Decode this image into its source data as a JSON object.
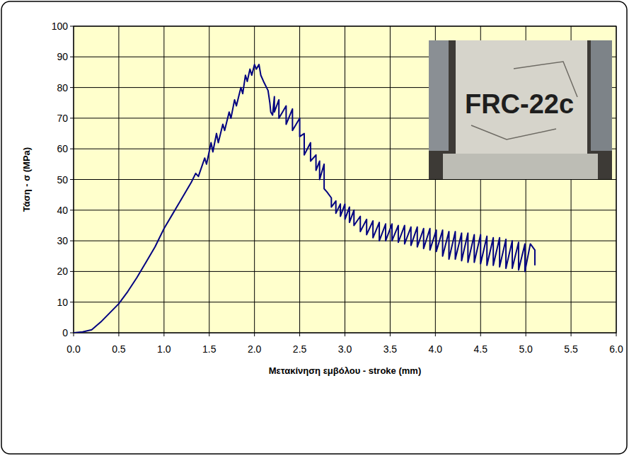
{
  "chart_data": {
    "type": "line",
    "x_label": "Μετακίνηση εμβόλου - stroke (mm)",
    "y_label": "Τάση - σ (MPa)",
    "annotations": [
      "FRC-22c"
    ],
    "color": "#000080",
    "grid": true,
    "xlim": [
      0,
      6
    ],
    "ylim": [
      0,
      100
    ],
    "xticks": [
      {
        "value": 0,
        "label": "0.0"
      },
      {
        "value": 0.5,
        "label": "0.5"
      },
      {
        "value": 1,
        "label": "1.0"
      },
      {
        "value": 1.5,
        "label": "1.5"
      },
      {
        "value": 2,
        "label": "2.0"
      },
      {
        "value": 2.5,
        "label": "2.5"
      },
      {
        "value": 3,
        "label": "3.0"
      },
      {
        "value": 3.5,
        "label": "3.5"
      },
      {
        "value": 4,
        "label": "4.0"
      },
      {
        "value": 4.5,
        "label": "4.5"
      },
      {
        "value": 5,
        "label": "5.0"
      },
      {
        "value": 5.5,
        "label": "5.5"
      },
      {
        "value": 6,
        "label": "6.0"
      }
    ],
    "yticks": [
      0,
      10,
      20,
      30,
      40,
      50,
      60,
      70,
      80,
      90,
      100
    ],
    "x": [
      0,
      0.1,
      0.2,
      0.3,
      0.4,
      0.5,
      0.6,
      0.7,
      0.8,
      0.9,
      1.0,
      1.1,
      1.2,
      1.3,
      1.35,
      1.38,
      1.45,
      1.47,
      1.52,
      1.54,
      1.58,
      1.6,
      1.65,
      1.67,
      1.72,
      1.74,
      1.78,
      1.8,
      1.85,
      1.87,
      1.9,
      1.92,
      1.95,
      1.97,
      2.0,
      2.02,
      2.05,
      2.07,
      2.1,
      2.15,
      2.17,
      2.18,
      2.2,
      2.22,
      2.22,
      2.27,
      2.27,
      2.35,
      2.35,
      2.42,
      2.42,
      2.5,
      2.5,
      2.55,
      2.55,
      2.62,
      2.62,
      2.68,
      2.68,
      2.72,
      2.72,
      2.77,
      2.77,
      2.8,
      2.85,
      2.85,
      2.9,
      2.9,
      2.95,
      2.95,
      3.0,
      3.0,
      3.05,
      3.05,
      3.1,
      3.1,
      3.17,
      3.17,
      3.24,
      3.24,
      3.31,
      3.31,
      3.38,
      3.38,
      3.45,
      3.45,
      3.52,
      3.52,
      3.59,
      3.59,
      3.66,
      3.66,
      3.73,
      3.73,
      3.8,
      3.8,
      3.87,
      3.87,
      3.94,
      3.94,
      4.01,
      4.01,
      4.08,
      4.08,
      4.15,
      4.15,
      4.22,
      4.22,
      4.29,
      4.29,
      4.36,
      4.36,
      4.43,
      4.43,
      4.5,
      4.5,
      4.57,
      4.57,
      4.64,
      4.64,
      4.71,
      4.71,
      4.78,
      4.78,
      4.85,
      4.85,
      4.92,
      4.92,
      4.99,
      4.99,
      5.05,
      5.1,
      5.1
    ],
    "values": [
      0,
      0.3,
      1,
      3.5,
      6.5,
      9.5,
      13.5,
      18,
      23,
      28,
      34,
      39,
      44,
      49,
      52,
      51,
      57,
      55,
      62,
      59,
      65,
      62,
      68,
      66,
      72,
      70,
      76,
      74,
      80,
      78,
      84,
      82,
      86,
      84,
      87.5,
      86,
      87.5,
      84,
      82,
      79,
      75,
      72,
      71,
      77,
      72,
      76,
      70,
      74,
      68,
      73,
      66,
      70,
      64,
      65,
      58,
      62,
      56,
      58,
      53,
      56,
      50,
      55,
      47,
      46,
      44,
      41,
      43,
      39,
      42,
      38,
      42,
      37,
      41,
      36,
      40,
      35,
      38,
      33,
      37,
      32,
      36.5,
      31,
      36,
      30,
      35.5,
      30,
      35.5,
      30,
      35,
      29.5,
      35,
      29,
      34.5,
      28.5,
      34.5,
      28,
      34,
      27.5,
      34,
      27,
      33.5,
      26.5,
      33.5,
      25,
      33,
      24,
      33,
      24,
      32.5,
      23.5,
      32.5,
      23,
      32,
      23,
      32,
      22.5,
      31.5,
      22,
      31,
      22,
      31,
      21.5,
      30.5,
      21,
      30,
      21,
      29.5,
      20.5,
      29,
      20,
      29,
      27,
      22
    ]
  }
}
